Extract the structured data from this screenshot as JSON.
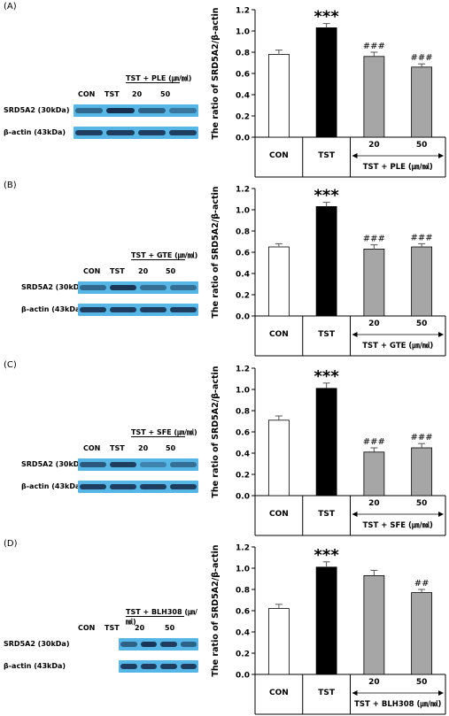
{
  "panels": [
    {
      "label": "(A)",
      "blot": {
        "lanes": [
          "CON",
          "TST"
        ],
        "treat_header": "TST + PLE (㎛/㏖)",
        "doses": [
          "20",
          "50"
        ],
        "rows": [
          "SRD5A2 (30kDa)",
          "β-actin (43kDa)"
        ]
      },
      "chart_data": {
        "type": "bar",
        "ylabel": "The ratio of SRD5A2/β-actin",
        "ylim": [
          0,
          1.2
        ],
        "yticks": [
          "0.0",
          "0.2",
          "0.4",
          "0.6",
          "0.8",
          "1.0",
          "1.2"
        ],
        "categories": [
          "CON",
          "TST",
          "20",
          "50"
        ],
        "values": [
          0.78,
          1.03,
          0.76,
          0.66
        ],
        "errors": [
          0.04,
          0.04,
          0.04,
          0.03
        ],
        "bar_colors": [
          "#ffffff",
          "#000000",
          "#a6a6a6",
          "#a6a6a6"
        ],
        "annotations": [
          "",
          "***",
          "###",
          "###"
        ],
        "group_label": "TST + PLE (㎛/㏖)"
      }
    },
    {
      "label": "(B)",
      "blot": {
        "lanes": [
          "CON",
          "TST"
        ],
        "treat_header": "TST + GTE (㎛/㏖)",
        "doses": [
          "20",
          "50"
        ],
        "rows": [
          "SRD5A2 (30kDa)",
          "β-actin (43kDa)"
        ]
      },
      "chart_data": {
        "type": "bar",
        "ylabel": "The ratio of SRD5A2/β-actin",
        "ylim": [
          0,
          1.2
        ],
        "yticks": [
          "0.0",
          "0.2",
          "0.4",
          "0.6",
          "0.8",
          "1.0",
          "1.2"
        ],
        "categories": [
          "CON",
          "TST",
          "20",
          "50"
        ],
        "values": [
          0.65,
          1.03,
          0.63,
          0.65
        ],
        "errors": [
          0.03,
          0.04,
          0.04,
          0.03
        ],
        "bar_colors": [
          "#ffffff",
          "#000000",
          "#a6a6a6",
          "#a6a6a6"
        ],
        "annotations": [
          "",
          "***",
          "###",
          "###"
        ],
        "group_label": "TST + GTE (㎛/㏖)"
      }
    },
    {
      "label": "(C)",
      "blot": {
        "lanes": [
          "CON",
          "TST"
        ],
        "treat_header": "TST + SFE (㎛/㏖)",
        "doses": [
          "20",
          "50"
        ],
        "rows": [
          "SRD5A2 (30kDa)",
          "β-actin (43kDa)"
        ]
      },
      "chart_data": {
        "type": "bar",
        "ylabel": "The ratio of SRD5A2/β-actin",
        "ylim": [
          0,
          1.2
        ],
        "yticks": [
          "0.0",
          "0.2",
          "0.4",
          "0.6",
          "0.8",
          "1.0",
          "1.2"
        ],
        "categories": [
          "CON",
          "TST",
          "20",
          "50"
        ],
        "values": [
          0.71,
          1.01,
          0.41,
          0.45
        ],
        "errors": [
          0.04,
          0.05,
          0.04,
          0.04
        ],
        "bar_colors": [
          "#ffffff",
          "#000000",
          "#a6a6a6",
          "#a6a6a6"
        ],
        "annotations": [
          "",
          "***",
          "###",
          "###"
        ],
        "group_label": "TST + SFE (㎛/㏖)"
      }
    },
    {
      "label": "(D)",
      "blot": {
        "lanes": [
          "CON",
          "TST"
        ],
        "treat_header": "TST + BLH308 (㎛/㏖)",
        "doses": [
          "20",
          "50"
        ],
        "rows": [
          "SRD5A2 (30kDa)",
          "β-actin (43kDa)"
        ]
      },
      "chart_data": {
        "type": "bar",
        "ylabel": "The ratio of SRD5A2/β-actin",
        "ylim": [
          0,
          1.2
        ],
        "yticks": [
          "0.0",
          "0.2",
          "0.4",
          "0.6",
          "0.8",
          "1.0",
          "1.2"
        ],
        "categories": [
          "CON",
          "TST",
          "20",
          "50"
        ],
        "values": [
          0.62,
          1.01,
          0.93,
          0.77
        ],
        "errors": [
          0.04,
          0.05,
          0.05,
          0.03
        ],
        "bar_colors": [
          "#ffffff",
          "#000000",
          "#a6a6a6",
          "#a6a6a6"
        ],
        "annotations": [
          "",
          "***",
          "",
          "##"
        ],
        "group_label": "TST + BLH308 (㎛/㏖)"
      }
    }
  ]
}
